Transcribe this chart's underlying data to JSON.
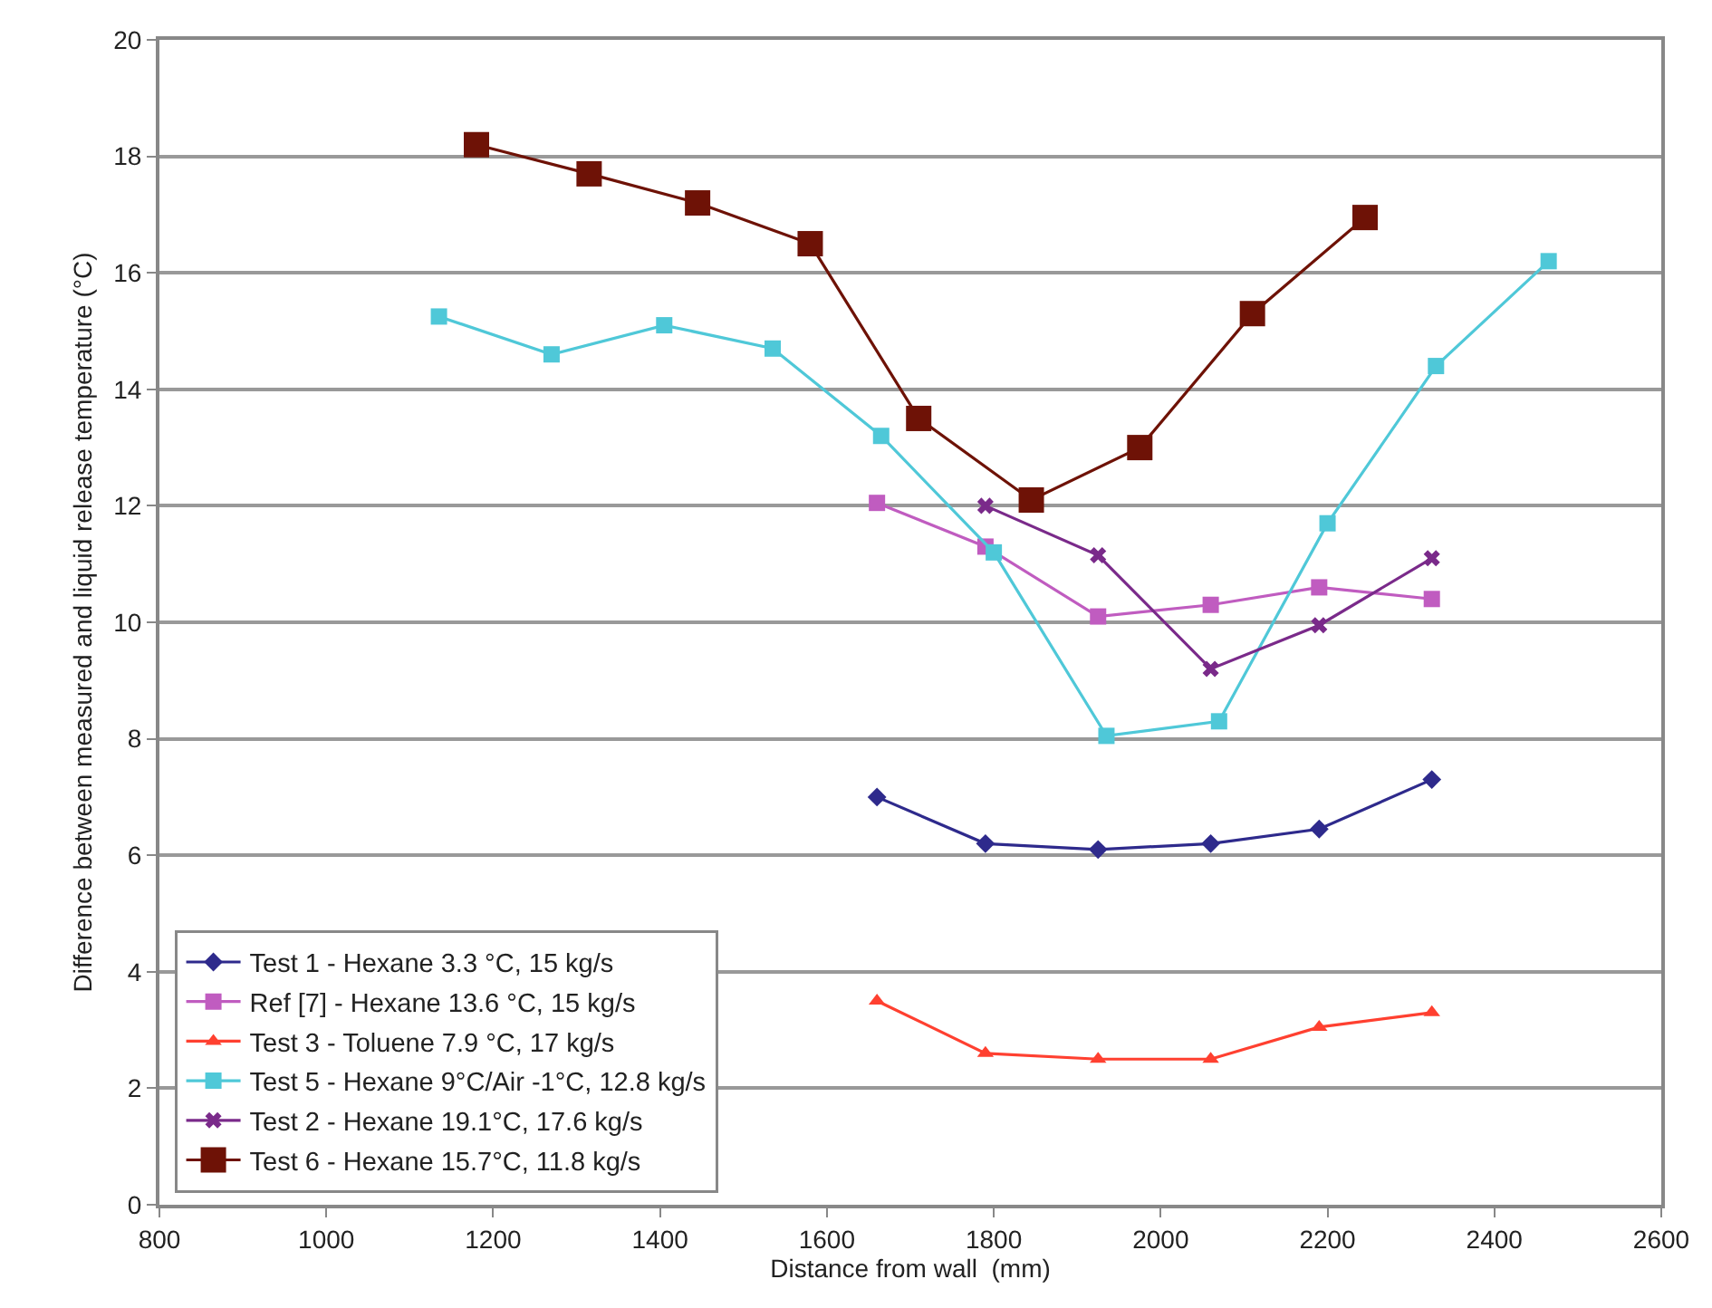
{
  "chart_data": {
    "type": "line",
    "xlabel": "Distance from wall  (mm)",
    "ylabel": "Difference between measured and liquid release temperature (°C)",
    "xlim": [
      800,
      2600
    ],
    "xticks": [
      800,
      1000,
      1200,
      1400,
      1600,
      1800,
      2000,
      2200,
      2400,
      2600
    ],
    "ylim": [
      0,
      20
    ],
    "yticks": [
      0,
      2,
      4,
      6,
      8,
      10,
      12,
      14,
      16,
      18,
      20
    ],
    "grid": "y",
    "legend": "bottom left",
    "line_style": "solid",
    "series": [
      {
        "name": "Test 1 - Hexane 3.3 °C, 15 kg/s",
        "color": "#2e2a8c",
        "marker": "diamond",
        "x": [
          1660,
          1790,
          1925,
          2060,
          2190,
          2325
        ],
        "values": [
          7.0,
          6.2,
          6.1,
          6.2,
          6.45,
          7.3
        ]
      },
      {
        "name": "Ref [7] - Hexane 13.6 °C, 15 kg/s",
        "color": "#c05cc0",
        "marker": "square",
        "x": [
          1660,
          1790,
          1925,
          2060,
          2190,
          2325
        ],
        "values": [
          12.05,
          11.3,
          10.1,
          10.3,
          10.6,
          10.4
        ]
      },
      {
        "name": "Test 3 - Toluene 7.9 °C, 17 kg/s",
        "color": "#ff4030",
        "marker": "triangle",
        "x": [
          1660,
          1790,
          1925,
          2060,
          2190,
          2325
        ],
        "values": [
          3.5,
          2.6,
          2.5,
          2.5,
          3.05,
          3.3
        ]
      },
      {
        "name": "Test 5 - Hexane 9°C/Air -1°C, 12.8 kg/s",
        "color": "#4fc8d8",
        "marker": "square",
        "x": [
          1135,
          1270,
          1405,
          1535,
          1665,
          1800,
          1935,
          2070,
          2200,
          2330,
          2465
        ],
        "values": [
          15.25,
          14.6,
          15.1,
          14.7,
          13.2,
          11.2,
          8.05,
          8.3,
          11.7,
          14.4,
          16.2
        ]
      },
      {
        "name": "Test 2 - Hexane 19.1°C, 17.6 kg/s",
        "color": "#7a2a8a",
        "marker": "cross",
        "x": [
          1790,
          1925,
          2060,
          2190,
          2325
        ],
        "values": [
          12.0,
          11.15,
          9.2,
          9.95,
          11.1
        ]
      },
      {
        "name": "Test 6 - Hexane 15.7°C, 11.8 kg/s",
        "color": "#6e1206",
        "marker": "square",
        "x": [
          1180,
          1315,
          1445,
          1580,
          1710,
          1845,
          1975,
          2110,
          2245
        ],
        "values": [
          18.2,
          17.7,
          17.2,
          16.5,
          13.5,
          12.1,
          13.0,
          15.3,
          16.95
        ]
      }
    ]
  }
}
